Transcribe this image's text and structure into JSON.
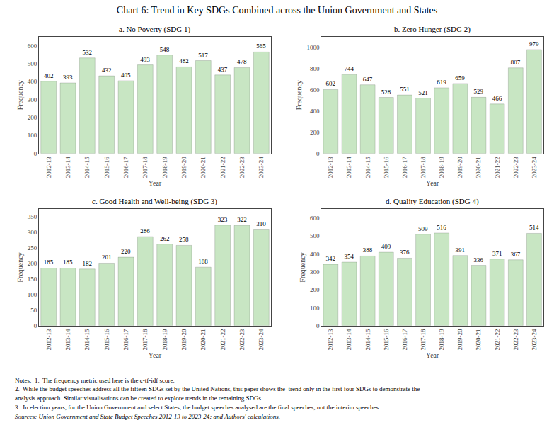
{
  "title": "Chart 6: Trend in Key SDGs Combined across the Union Government and States",
  "annotations": [
    "Notes:  1.  The frequency metric used here is the c-tf-idf score.",
    "2.  While the budget speeches address all the fifteen SDGs set by the United Nations, this paper shows the  trend only in the first four SDGs to demonstrate the",
    "analysis approach. Similar visualisations can be created to explore trends in the remaining SDGs.",
    "3.  In election years, for the Union Government and select States, the budget speeches analysed are the final speeches, not the interim speeches.",
    "Sources: Union Government and State Budget Speeches 2012-13 to 2023-24; and Authors' calculations."
  ],
  "chart_data": [
    {
      "type": "bar",
      "title": "a. No Poverty (SDG 1)",
      "xlabel": "Year",
      "ylabel": "Frequency",
      "categories": [
        "2012-13",
        "2013-14",
        "2014-15",
        "2015-16",
        "2016-17",
        "2017-18",
        "2018-19",
        "2019-20",
        "2020-21",
        "2021-22",
        "2022-23",
        "2023-24"
      ],
      "values": [
        402,
        393,
        532,
        432,
        405,
        493,
        548,
        482,
        517,
        437,
        478,
        565
      ],
      "color": "#c8e6c3",
      "ylim": [
        0,
        650
      ],
      "yticks": [
        0,
        100,
        200,
        300,
        400,
        500,
        600
      ],
      "grid": false,
      "data_labels": true
    },
    {
      "type": "bar",
      "title": "b. Zero Hunger (SDG 2)",
      "xlabel": "Year",
      "ylabel": "Frequency",
      "categories": [
        "2012-13",
        "2013-14",
        "2014-15",
        "2015-16",
        "2016-17",
        "2017-18",
        "2018-19",
        "2019-20",
        "2020-21",
        "2021-22",
        "2022-23",
        "2023-24"
      ],
      "values": [
        602,
        744,
        647,
        528,
        551,
        521,
        619,
        659,
        529,
        466,
        807,
        979
      ],
      "color": "#c8e6c3",
      "ylim": [
        0,
        1100
      ],
      "yticks": [
        0,
        200,
        400,
        600,
        800,
        1000
      ],
      "grid": false,
      "data_labels": true
    },
    {
      "type": "bar",
      "title": "c. Good Health and Well-being (SDG 3)",
      "xlabel": "Year",
      "ylabel": "Frequency",
      "categories": [
        "2012-13",
        "2013-14",
        "2014-15",
        "2015-16",
        "2016-17",
        "2017-18",
        "2018-19",
        "2019-20",
        "2020-21",
        "2021-22",
        "2022-23",
        "2023-24"
      ],
      "values": [
        185,
        185,
        182,
        201,
        220,
        286,
        262,
        258,
        188,
        323,
        322,
        310
      ],
      "color": "#c8e6c3",
      "ylim": [
        0,
        375
      ],
      "yticks": [
        0,
        50,
        100,
        150,
        200,
        250,
        300,
        350
      ],
      "grid": false,
      "data_labels": true
    },
    {
      "type": "bar",
      "title": "d. Quality Education (SDG 4)",
      "xlabel": "Year",
      "ylabel": "Frequency",
      "categories": [
        "2012-13",
        "2013-14",
        "2014-15",
        "2015-16",
        "2016-17",
        "2017-18",
        "2018-19",
        "2019-20",
        "2020-21",
        "2021-22",
        "2022-23",
        "2023-24"
      ],
      "values": [
        342,
        354,
        388,
        409,
        376,
        509,
        516,
        391,
        336,
        371,
        367,
        514
      ],
      "color": "#c8e6c3",
      "ylim": [
        0,
        650
      ],
      "yticks": [
        0,
        100,
        200,
        300,
        400,
        500,
        600
      ],
      "grid": false,
      "data_labels": true
    }
  ]
}
